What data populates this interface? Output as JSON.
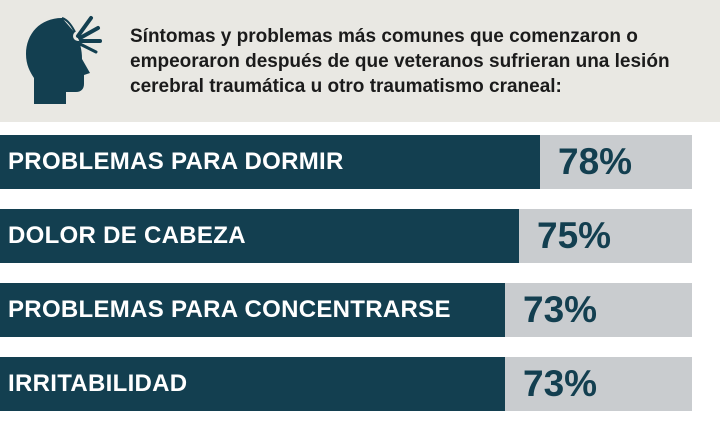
{
  "header": {
    "subtitle": "Síntomas y problemas más comunes que comenzaron o empeoraron después de que veteranos sufrieran una lesión cerebral traumática u otro traumatismo craneal:",
    "icon": "head-impact-icon"
  },
  "colors": {
    "bar_fill": "#133f50",
    "bar_track": "#c9cccf",
    "header_bg": "#e9e8e3",
    "value_text": "#133f50"
  },
  "chart_data": {
    "type": "bar",
    "orientation": "horizontal",
    "categories": [
      "PROBLEMAS PARA DORMIR",
      "DOLOR DE CABEZA",
      "PROBLEMAS PARA CONCENTRARSE",
      "IRRITABILIDAD"
    ],
    "values": [
      78,
      75,
      73,
      73
    ],
    "value_labels": [
      "78%",
      "75%",
      "73%",
      "73%"
    ],
    "unit": "%",
    "xlim": [
      0,
      100
    ],
    "title": "",
    "xlabel": "",
    "ylabel": "",
    "grid": false,
    "legend": "none"
  }
}
